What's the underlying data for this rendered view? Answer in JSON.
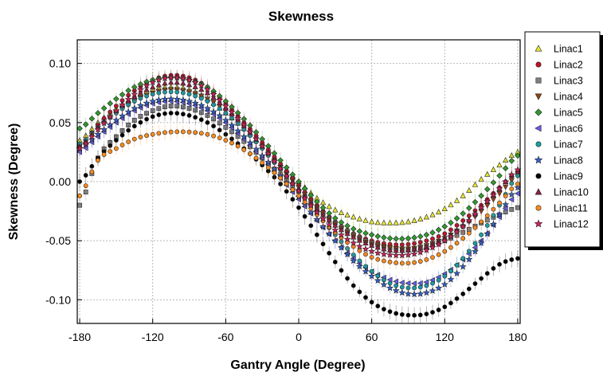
{
  "chart_data": {
    "type": "scatter",
    "title": "Skewness",
    "xlabel": "Gantry Angle (Degree)",
    "ylabel": "Skewness (Degree)",
    "xlim": [
      -182,
      182
    ],
    "ylim": [
      -0.12,
      0.12
    ],
    "xticks": [
      -180,
      -120,
      -60,
      0,
      60,
      120,
      180
    ],
    "xtick_labels": [
      "-180",
      "-120",
      "-60",
      "0",
      "60",
      "120",
      "180"
    ],
    "yticks": [
      0.1,
      0.05,
      0.0,
      -0.05,
      -0.1
    ],
    "ytick_labels": [
      "0.10",
      "0.05",
      "0.00",
      "-0.05",
      "-0.10"
    ],
    "grid": true,
    "legend_position": "right",
    "error_bars": true,
    "x": [
      -180,
      -165,
      -150,
      -135,
      -120,
      -105,
      -90,
      -75,
      -60,
      -45,
      -30,
      -15,
      0,
      15,
      30,
      45,
      60,
      75,
      90,
      105,
      120,
      135,
      150,
      165,
      180
    ],
    "series": [
      {
        "name": "Linac1",
        "marker": "triangle-up",
        "color": "#e8e830",
        "values": [
          0.035,
          0.05,
          0.062,
          0.072,
          0.078,
          0.08,
          0.078,
          0.07,
          0.058,
          0.045,
          0.03,
          0.015,
          0.0,
          -0.014,
          -0.024,
          -0.03,
          -0.034,
          -0.035,
          -0.034,
          -0.03,
          -0.023,
          -0.012,
          0.002,
          0.014,
          0.025
        ]
      },
      {
        "name": "Linac2",
        "marker": "circle",
        "color": "#c0102a",
        "values": [
          0.03,
          0.048,
          0.064,
          0.077,
          0.086,
          0.09,
          0.088,
          0.08,
          0.066,
          0.05,
          0.033,
          0.015,
          -0.003,
          -0.02,
          -0.034,
          -0.044,
          -0.05,
          -0.053,
          -0.053,
          -0.05,
          -0.044,
          -0.033,
          -0.02,
          -0.005,
          0.008
        ]
      },
      {
        "name": "Linac3",
        "marker": "square",
        "color": "#808080",
        "values": [
          -0.02,
          0.02,
          0.038,
          0.052,
          0.06,
          0.064,
          0.062,
          0.056,
          0.046,
          0.034,
          0.02,
          0.006,
          -0.008,
          -0.022,
          -0.035,
          -0.045,
          -0.052,
          -0.056,
          -0.057,
          -0.055,
          -0.05,
          -0.043,
          -0.035,
          -0.028,
          -0.022
        ]
      },
      {
        "name": "Linac4",
        "marker": "triangle-down",
        "color": "#8b4513",
        "values": [
          0.03,
          0.045,
          0.058,
          0.068,
          0.075,
          0.078,
          0.076,
          0.07,
          0.06,
          0.046,
          0.03,
          0.012,
          -0.005,
          -0.022,
          -0.036,
          -0.046,
          -0.053,
          -0.056,
          -0.057,
          -0.054,
          -0.048,
          -0.038,
          -0.025,
          -0.01,
          0.005
        ]
      },
      {
        "name": "Linac5",
        "marker": "diamond",
        "color": "#2e9b2e",
        "values": [
          0.045,
          0.058,
          0.07,
          0.08,
          0.086,
          0.088,
          0.086,
          0.08,
          0.068,
          0.053,
          0.036,
          0.018,
          0.0,
          -0.017,
          -0.031,
          -0.04,
          -0.045,
          -0.048,
          -0.048,
          -0.045,
          -0.038,
          -0.027,
          -0.012,
          0.005,
          0.022
        ]
      },
      {
        "name": "Linac6",
        "marker": "triangle-left",
        "color": "#6a5af0",
        "values": [
          0.025,
          0.038,
          0.05,
          0.06,
          0.066,
          0.068,
          0.066,
          0.06,
          0.05,
          0.036,
          0.02,
          0.003,
          -0.015,
          -0.033,
          -0.05,
          -0.065,
          -0.076,
          -0.083,
          -0.086,
          -0.085,
          -0.078,
          -0.066,
          -0.05,
          -0.03,
          -0.01
        ]
      },
      {
        "name": "Linac7",
        "marker": "circle",
        "color": "#1aa0a0",
        "values": [
          0.032,
          0.046,
          0.058,
          0.068,
          0.074,
          0.076,
          0.074,
          0.068,
          0.058,
          0.044,
          0.028,
          0.01,
          -0.008,
          -0.027,
          -0.045,
          -0.062,
          -0.076,
          -0.086,
          -0.09,
          -0.088,
          -0.08,
          -0.065,
          -0.045,
          -0.02,
          0.005
        ]
      },
      {
        "name": "Linac8",
        "marker": "star",
        "color": "#3060d0",
        "values": [
          0.028,
          0.04,
          0.052,
          0.062,
          0.068,
          0.07,
          0.068,
          0.062,
          0.052,
          0.038,
          0.022,
          0.005,
          -0.013,
          -0.032,
          -0.05,
          -0.067,
          -0.08,
          -0.09,
          -0.095,
          -0.094,
          -0.087,
          -0.072,
          -0.052,
          -0.028,
          -0.005
        ]
      },
      {
        "name": "Linac9",
        "marker": "circle",
        "color": "#000000",
        "values": [
          0.0,
          0.02,
          0.035,
          0.047,
          0.055,
          0.058,
          0.056,
          0.05,
          0.04,
          0.028,
          0.014,
          -0.002,
          -0.022,
          -0.045,
          -0.068,
          -0.088,
          -0.102,
          -0.11,
          -0.113,
          -0.112,
          -0.106,
          -0.095,
          -0.082,
          -0.07,
          -0.065
        ]
      },
      {
        "name": "Linac10",
        "marker": "triangle-up",
        "color": "#8a2040",
        "values": [
          0.03,
          0.046,
          0.06,
          0.072,
          0.08,
          0.084,
          0.082,
          0.075,
          0.062,
          0.047,
          0.03,
          0.012,
          -0.006,
          -0.023,
          -0.037,
          -0.047,
          -0.054,
          -0.058,
          -0.058,
          -0.055,
          -0.048,
          -0.037,
          -0.022,
          -0.006,
          0.01
        ]
      },
      {
        "name": "Linac11",
        "marker": "circle",
        "color": "#ff8c1a",
        "values": [
          -0.012,
          0.018,
          0.028,
          0.036,
          0.04,
          0.042,
          0.042,
          0.04,
          0.035,
          0.027,
          0.016,
          0.003,
          -0.012,
          -0.028,
          -0.043,
          -0.055,
          -0.064,
          -0.068,
          -0.069,
          -0.066,
          -0.059,
          -0.048,
          -0.034,
          -0.018,
          -0.002
        ]
      },
      {
        "name": "Linac12",
        "marker": "star",
        "color": "#d0205a",
        "values": [
          0.028,
          0.044,
          0.06,
          0.074,
          0.084,
          0.088,
          0.086,
          0.078,
          0.064,
          0.048,
          0.03,
          0.011,
          -0.008,
          -0.026,
          -0.041,
          -0.052,
          -0.059,
          -0.062,
          -0.062,
          -0.058,
          -0.05,
          -0.038,
          -0.022,
          -0.006,
          0.01
        ]
      }
    ]
  }
}
